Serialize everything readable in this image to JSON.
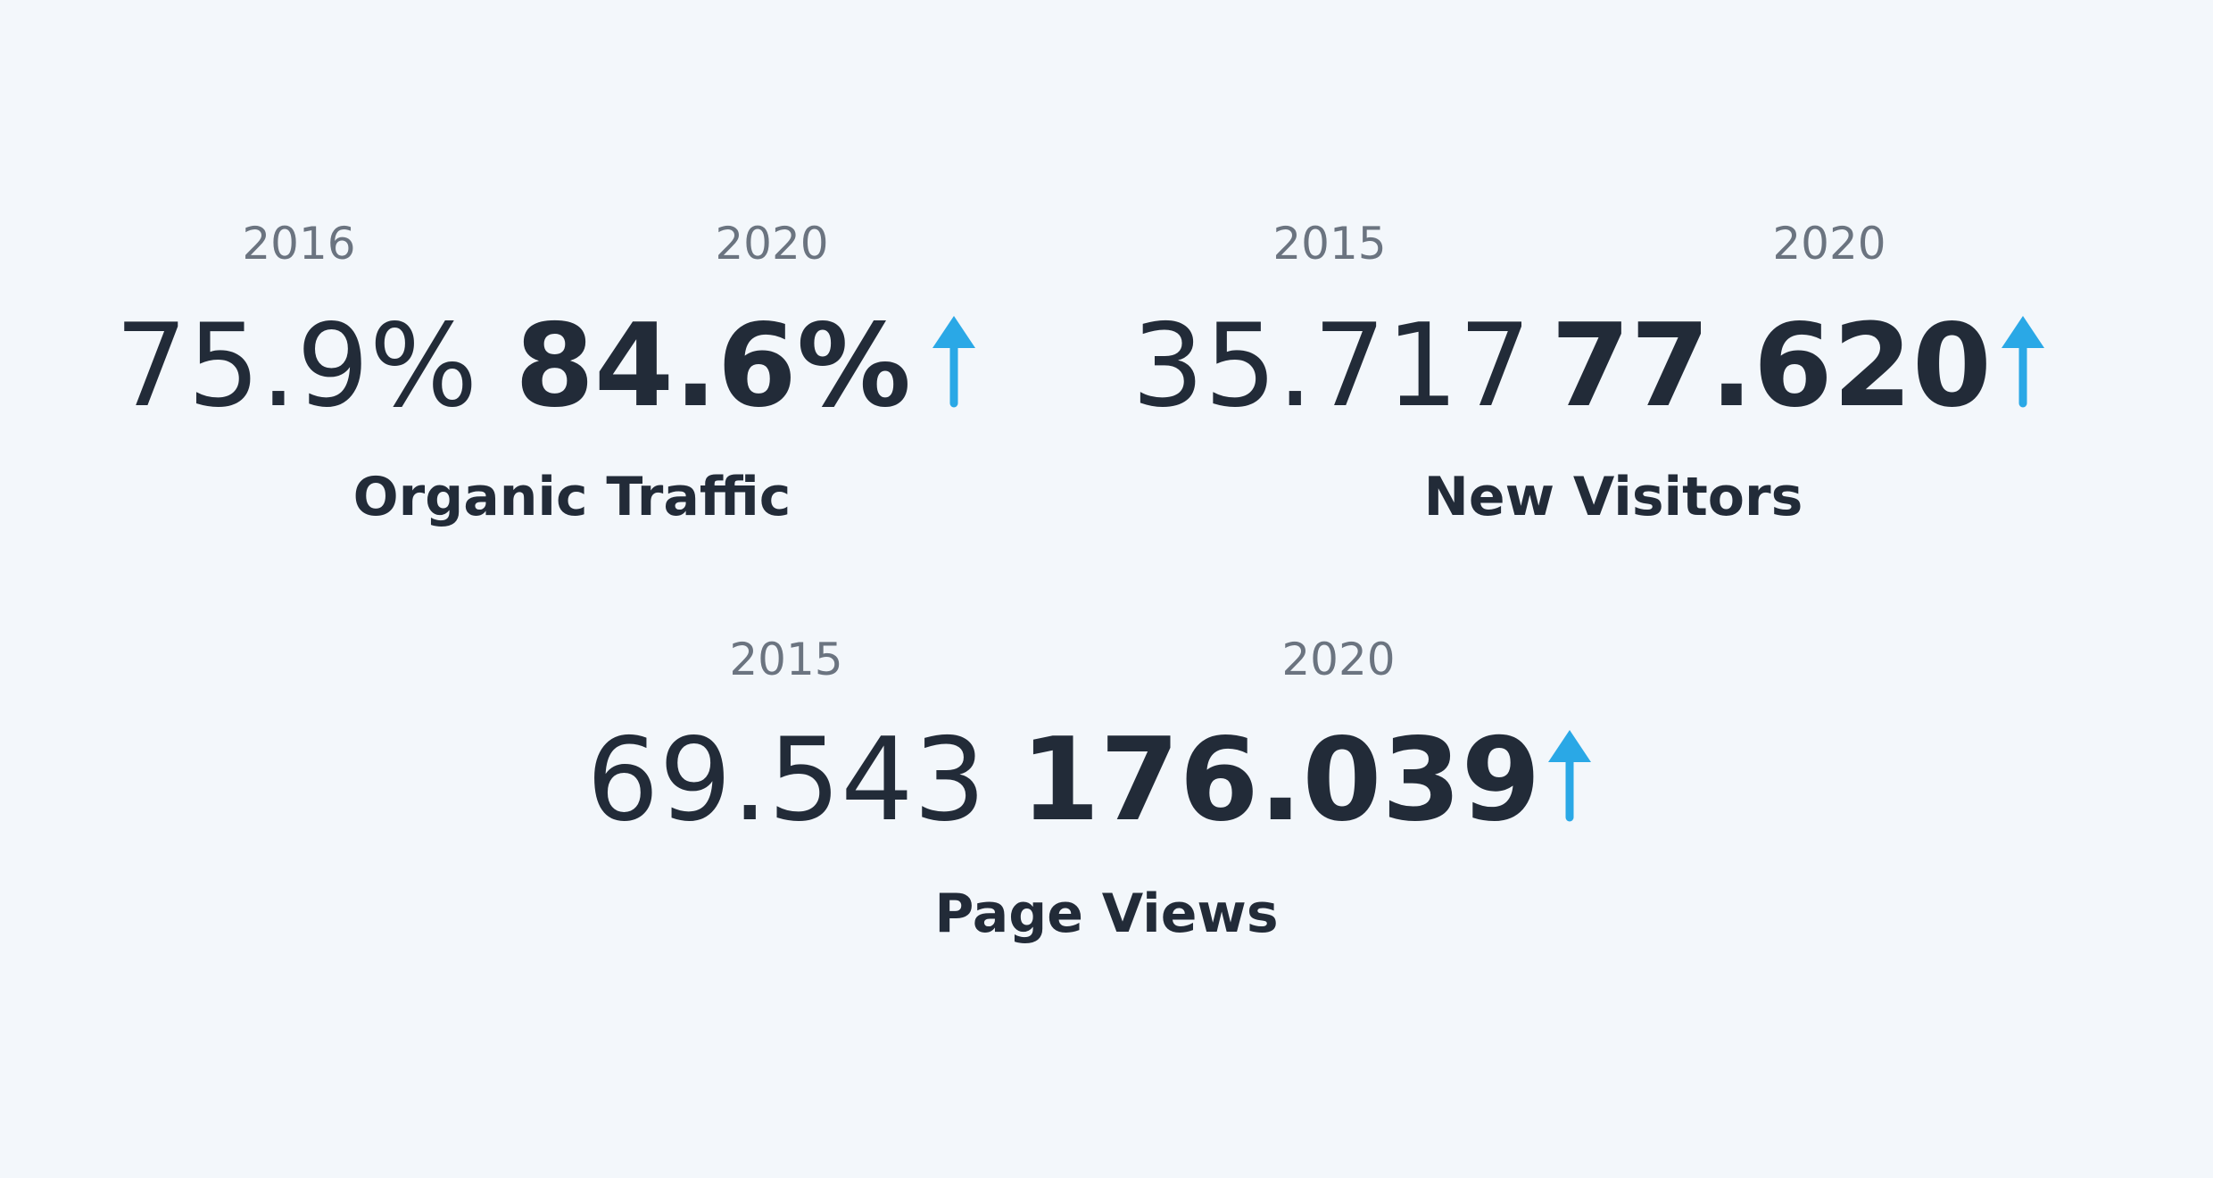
{
  "stats": [
    {
      "label": "Organic Traffic",
      "before": {
        "year": "2016",
        "value": "75.9%"
      },
      "after": {
        "year": "2020",
        "value": "84.6%"
      }
    },
    {
      "label": "New Visitors",
      "before": {
        "year": "2015",
        "value": "35.717"
      },
      "after": {
        "year": "2020",
        "value": "77.620"
      }
    },
    {
      "label": "Page Views",
      "before": {
        "year": "2015",
        "value": "69.543"
      },
      "after": {
        "year": "2020",
        "value": "176.039"
      }
    }
  ]
}
